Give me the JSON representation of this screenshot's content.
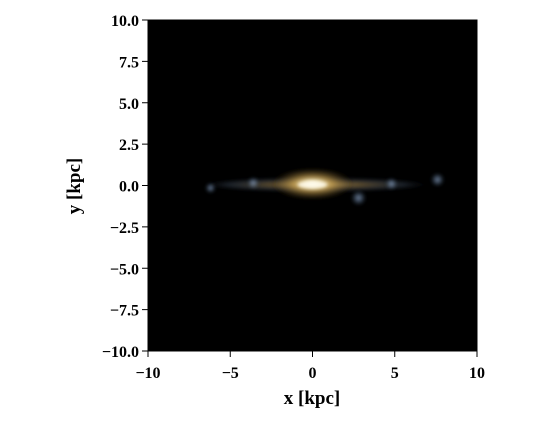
{
  "chart_data": {
    "type": "heatmap",
    "title": "",
    "xlabel": "x [kpc]",
    "ylabel": "y [kpc]",
    "xlim": [
      -10,
      10
    ],
    "ylim": [
      -10,
      10
    ],
    "x_ticks": [
      -10,
      -5,
      0,
      5,
      10
    ],
    "x_tick_labels": [
      "−10",
      "−5",
      "0",
      "5",
      "10"
    ],
    "y_ticks": [
      10,
      7.5,
      5,
      2.5,
      0,
      -2.5,
      -5,
      -7.5,
      -10
    ],
    "y_tick_labels": [
      "10.0",
      "7.5",
      "5.0",
      "2.5",
      "0.0",
      "−2.5",
      "−5.0",
      "−7.5",
      "−10.0"
    ],
    "grid": false,
    "background_color": "#000000",
    "image_description_colors": {
      "core": "#fffbe8",
      "bulge": "#c9a14e",
      "disk": "#6d5a35",
      "star_forming_regions": "#7f9cc7"
    },
    "features": [
      {
        "kind": "bulge",
        "cx": 0,
        "cy": 0.1,
        "rx": 2.6,
        "ry": 1.0
      },
      {
        "kind": "disk",
        "cx": 0.2,
        "cy": 0.05,
        "rx": 7.2,
        "ry": 0.45
      },
      {
        "kind": "clump",
        "cx": 7.6,
        "cy": 0.35,
        "r": 0.45
      },
      {
        "kind": "clump",
        "cx": 2.8,
        "cy": -0.75,
        "r": 0.5
      },
      {
        "kind": "clump",
        "cx": -3.6,
        "cy": 0.15,
        "r": 0.4
      },
      {
        "kind": "clump",
        "cx": 4.8,
        "cy": 0.1,
        "r": 0.4
      },
      {
        "kind": "clump",
        "cx": -6.2,
        "cy": -0.15,
        "r": 0.35
      }
    ]
  }
}
